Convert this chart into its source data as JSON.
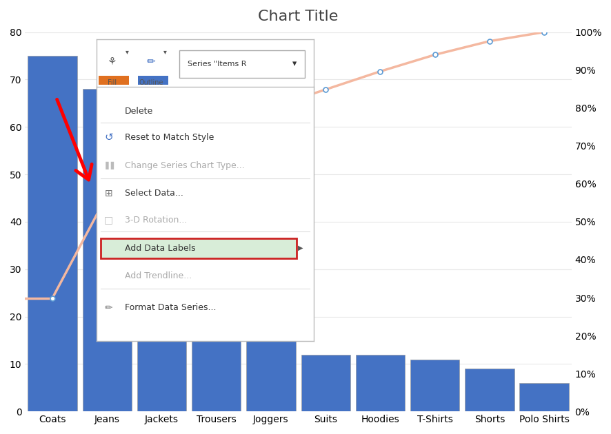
{
  "title": "Chart Title",
  "categories": [
    "Coats",
    "Jeans",
    "Jackets",
    "Trousers",
    "Joggers",
    "Suits",
    "Hoodies",
    "T-Shirts",
    "Shorts",
    "Polo Shirts"
  ],
  "bar_values": [
    75,
    68,
    20,
    20,
    18,
    12,
    12,
    11,
    9,
    6
  ],
  "bar_color": "#4472C4",
  "line_color": "#F4B8A0",
  "line_marker_color": "#5B9BD5",
  "background_color": "#FFFFFF",
  "grid_color": "#E8E8E8",
  "ylim_left": [
    0,
    80
  ],
  "ylim_right": [
    0,
    100
  ],
  "yticks_left": [
    0,
    10,
    20,
    30,
    40,
    50,
    60,
    70,
    80
  ],
  "yticks_right": [
    0,
    10,
    20,
    30,
    40,
    50,
    60,
    70,
    80,
    90,
    100
  ],
  "title_fontsize": 16,
  "axis_fontsize": 10
}
